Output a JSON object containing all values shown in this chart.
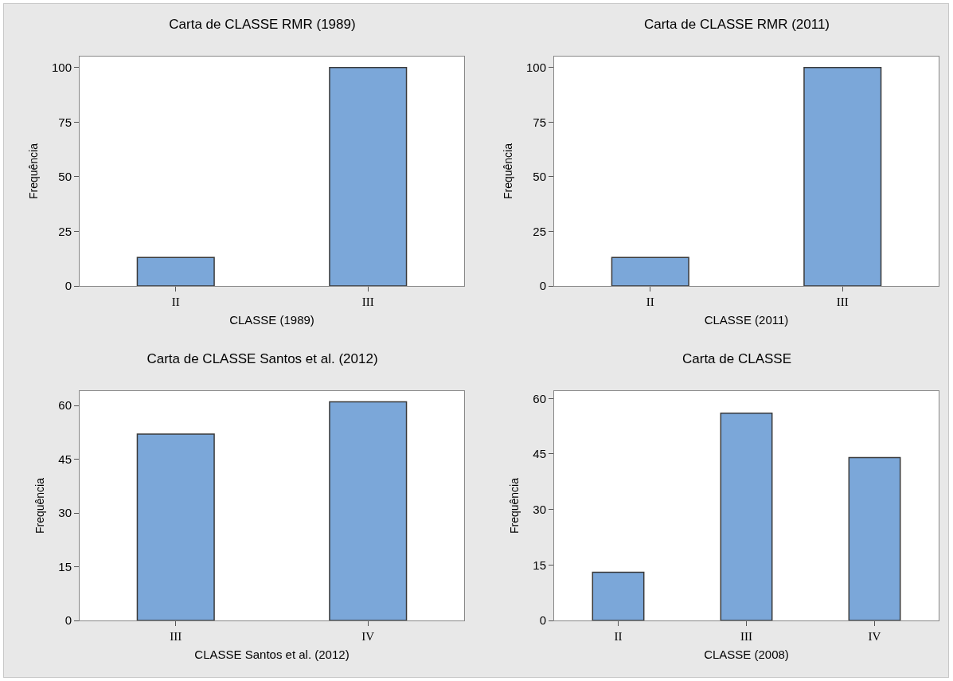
{
  "chart_data": [
    {
      "type": "bar",
      "title": "Carta de CLASSE RMR (1989)",
      "xlabel": "CLASSE (1989)",
      "ylabel": "Frequência",
      "categories": [
        "II",
        "III"
      ],
      "values": [
        13,
        100
      ],
      "color": "#7ba7d9",
      "ylim": [
        0,
        105
      ],
      "yticks": [
        0,
        25,
        50,
        75,
        100
      ]
    },
    {
      "type": "bar",
      "title": "Carta de CLASSE RMR (2011)",
      "xlabel": "CLASSE (2011)",
      "ylabel": "Frequência",
      "categories": [
        "II",
        "III"
      ],
      "values": [
        13,
        100
      ],
      "color": "#7ba7d9",
      "ylim": [
        0,
        105
      ],
      "yticks": [
        0,
        25,
        50,
        75,
        100
      ]
    },
    {
      "type": "bar",
      "title": "Carta de CLASSE Santos et al. (2012)",
      "xlabel": "CLASSE Santos et al. (2012)",
      "ylabel": "Frequência",
      "categories": [
        "III",
        "IV"
      ],
      "values": [
        52,
        61
      ],
      "color": "#7ba7d9",
      "ylim": [
        0,
        64
      ],
      "yticks": [
        0,
        15,
        30,
        45,
        60
      ]
    },
    {
      "type": "bar",
      "title": "Carta de CLASSE",
      "xlabel": "CLASSE (2008)",
      "ylabel": "Frequência",
      "categories": [
        "II",
        "III",
        "IV"
      ],
      "values": [
        13,
        56,
        44
      ],
      "color": "#7ba7d9",
      "ylim": [
        0,
        62
      ],
      "yticks": [
        0,
        15,
        30,
        45,
        60
      ]
    }
  ]
}
